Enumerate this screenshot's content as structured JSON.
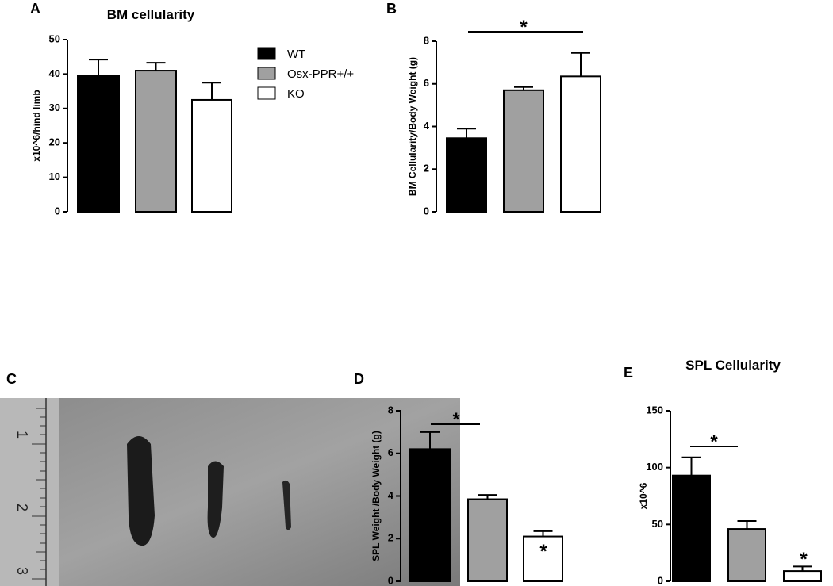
{
  "legend": {
    "items": [
      "WT",
      "Osx-PPR+/+",
      "KO"
    ],
    "colors": [
      "#000000",
      "#a0a0a0",
      "#ffffff"
    ]
  },
  "photo": {
    "panel": "C",
    "ruler_labels": [
      "1",
      "2",
      "3"
    ]
  },
  "chart_data": [
    {
      "type": "bar",
      "panel": "A",
      "title": "BM cellularity",
      "ylabel": "x10^6/hind limb",
      "values": [
        39.5,
        41,
        32.5
      ],
      "errors": [
        4.7,
        2.3,
        5
      ],
      "ylim": [
        0,
        50
      ],
      "yticks": [
        0,
        10,
        20,
        30,
        40,
        50
      ],
      "annotations": []
    },
    {
      "type": "bar",
      "panel": "B",
      "ylabel": "BM Cellularity/Body Weight (g)",
      "values": [
        3.45,
        5.7,
        6.35
      ],
      "errors": [
        0.45,
        0.15,
        1.1
      ],
      "ylim": [
        0,
        8
      ],
      "yticks": [
        0,
        2,
        4,
        6,
        8
      ],
      "annotations": [
        "*"
      ]
    },
    {
      "type": "bar",
      "panel": "D",
      "ylabel": "SPL Weight /Body Weight (g)",
      "values": [
        6.2,
        3.85,
        2.1
      ],
      "errors": [
        0.8,
        0.2,
        0.25
      ],
      "ylim": [
        0,
        8
      ],
      "yticks": [
        0,
        2,
        4,
        6,
        8
      ],
      "annotations": [
        "*",
        "*"
      ]
    },
    {
      "type": "bar",
      "panel": "E",
      "title": "SPL Cellularity",
      "ylabel": "x10^6",
      "values": [
        93,
        46,
        9
      ],
      "errors": [
        16,
        7,
        4
      ],
      "ylim": [
        0,
        150
      ],
      "yticks": [
        0,
        50,
        100,
        150
      ],
      "annotations": [
        "*",
        "*"
      ]
    }
  ]
}
